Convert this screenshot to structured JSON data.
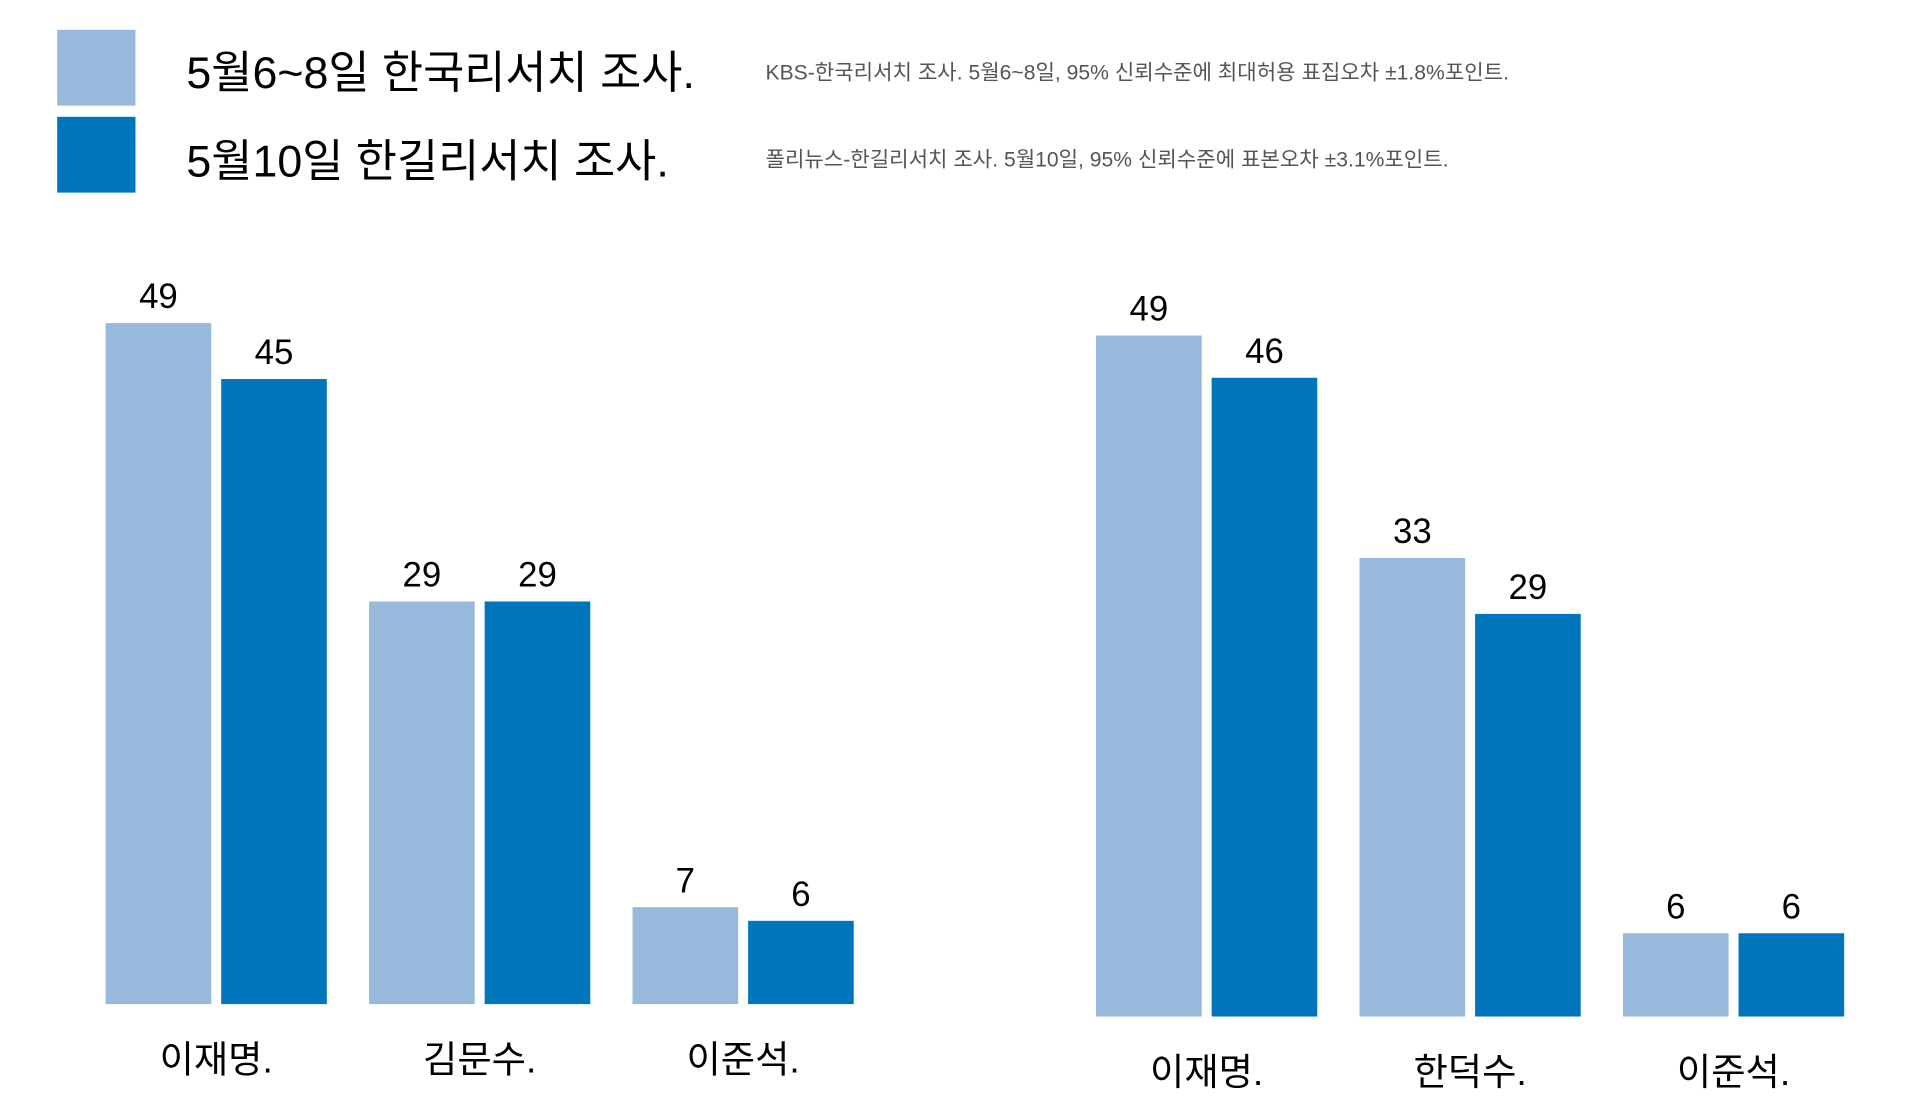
{
  "colors": {
    "survey1": "#97b9db",
    "survey2": "#0075bb"
  },
  "legend": [
    {
      "title": "5월6~8일 한국리서치 조사.",
      "note": "KBS-한국리서치 조사. 5월6~8일, 95% 신뢰수준에 최대허용 표집오차 ±1.8%포인트."
    },
    {
      "title": "5월10일 한길리서치 조사.",
      "note": "폴리뉴스-한길리서치 조사. 5월10일, 95% 신뢰수준에 표본오차 ±3.1%포인트."
    }
  ],
  "chart_data": [
    {
      "type": "bar",
      "categories": [
        "이재명.",
        "김문수.",
        "이준석."
      ],
      "series": [
        {
          "name": "5월6~8일 한국리서치 조사.",
          "values": [
            49,
            29,
            7
          ]
        },
        {
          "name": "5월10일 한길리서치 조사.",
          "values": [
            45,
            29,
            6
          ]
        }
      ],
      "ylim": [
        0,
        49
      ],
      "grid": false
    },
    {
      "type": "bar",
      "categories": [
        "이재명.",
        "한덕수.",
        "이준석."
      ],
      "series": [
        {
          "name": "5월6~8일 한국리서치 조사.",
          "values": [
            49,
            33,
            6
          ]
        },
        {
          "name": "5월10일 한길리서치 조사.",
          "values": [
            46,
            29,
            6
          ]
        }
      ],
      "ylim": [
        0,
        49
      ],
      "grid": false
    }
  ]
}
